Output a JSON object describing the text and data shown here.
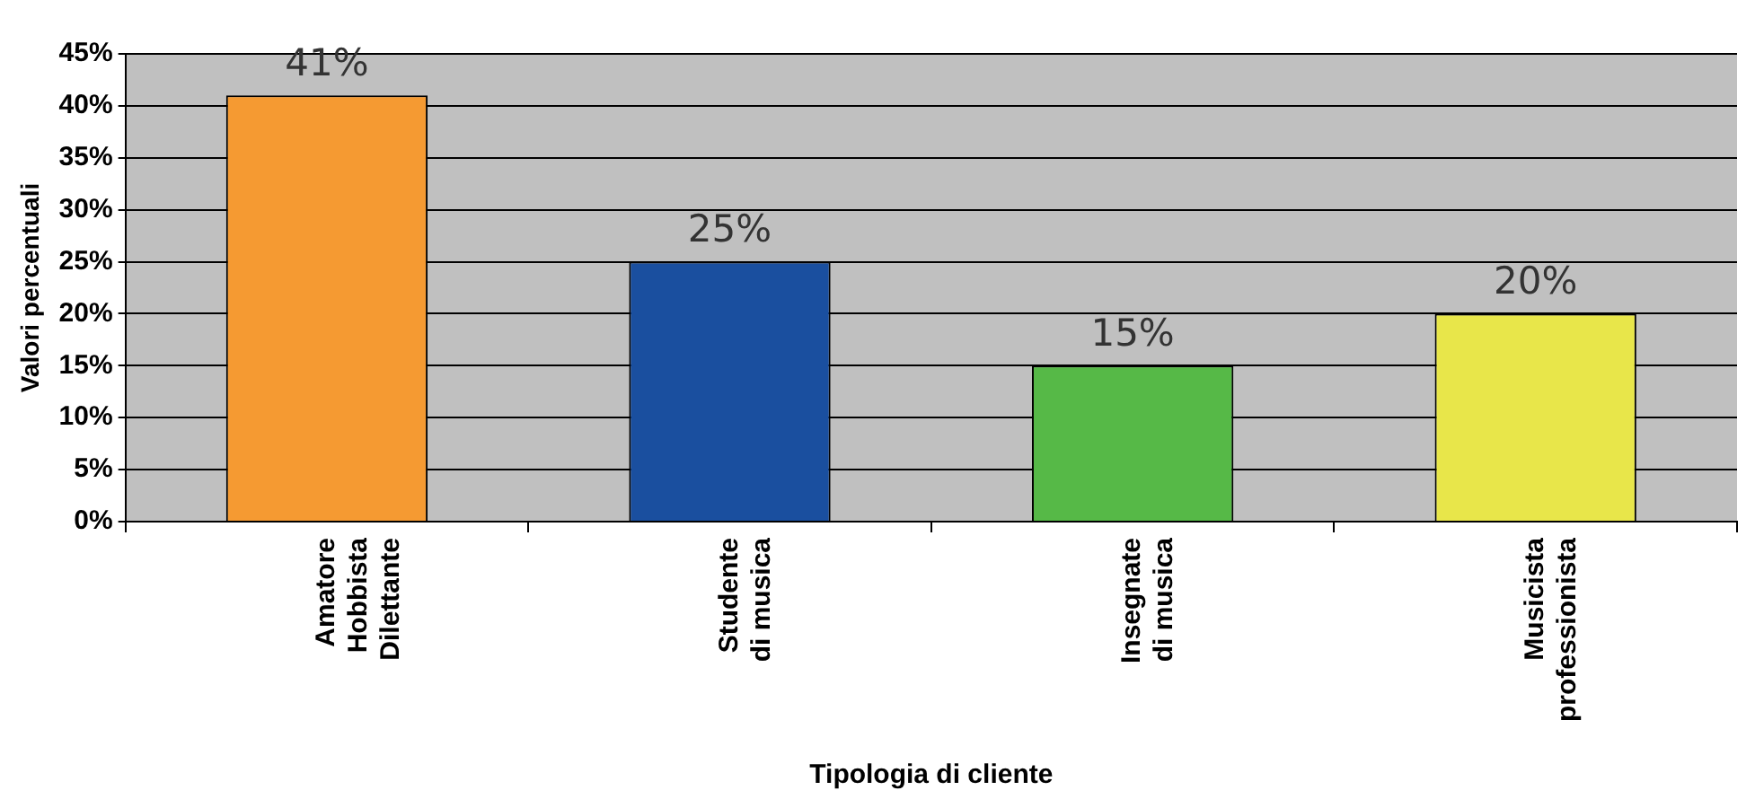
{
  "chart_data": {
    "type": "bar",
    "xlabel": "Tipologia di cliente",
    "ylabel": "Valori percentuali",
    "categories": [
      "Amatore\nHobbista\nDilettante",
      "Studente\ndi musica",
      "Insegnate\ndi musica",
      "Musicista\nprofessionista"
    ],
    "values": [
      41,
      25,
      15,
      20
    ],
    "colors": [
      "#f59a32",
      "#1a4f9f",
      "#56b947",
      "#e8e64a"
    ],
    "value_labels": [
      "41%",
      "25%",
      "15%",
      "20%"
    ],
    "ylim": [
      0,
      45
    ],
    "yticks": [
      {
        "value": 0,
        "label": "0%"
      },
      {
        "value": 5,
        "label": "5%"
      },
      {
        "value": 10,
        "label": "10%"
      },
      {
        "value": 15,
        "label": "15%"
      },
      {
        "value": 20,
        "label": "20%"
      },
      {
        "value": 25,
        "label": "25%"
      },
      {
        "value": 30,
        "label": "30%"
      },
      {
        "value": 35,
        "label": "35%"
      },
      {
        "value": 40,
        "label": "40%"
      },
      {
        "value": 45,
        "label": "45%"
      }
    ],
    "grid": "y",
    "legend": false
  }
}
